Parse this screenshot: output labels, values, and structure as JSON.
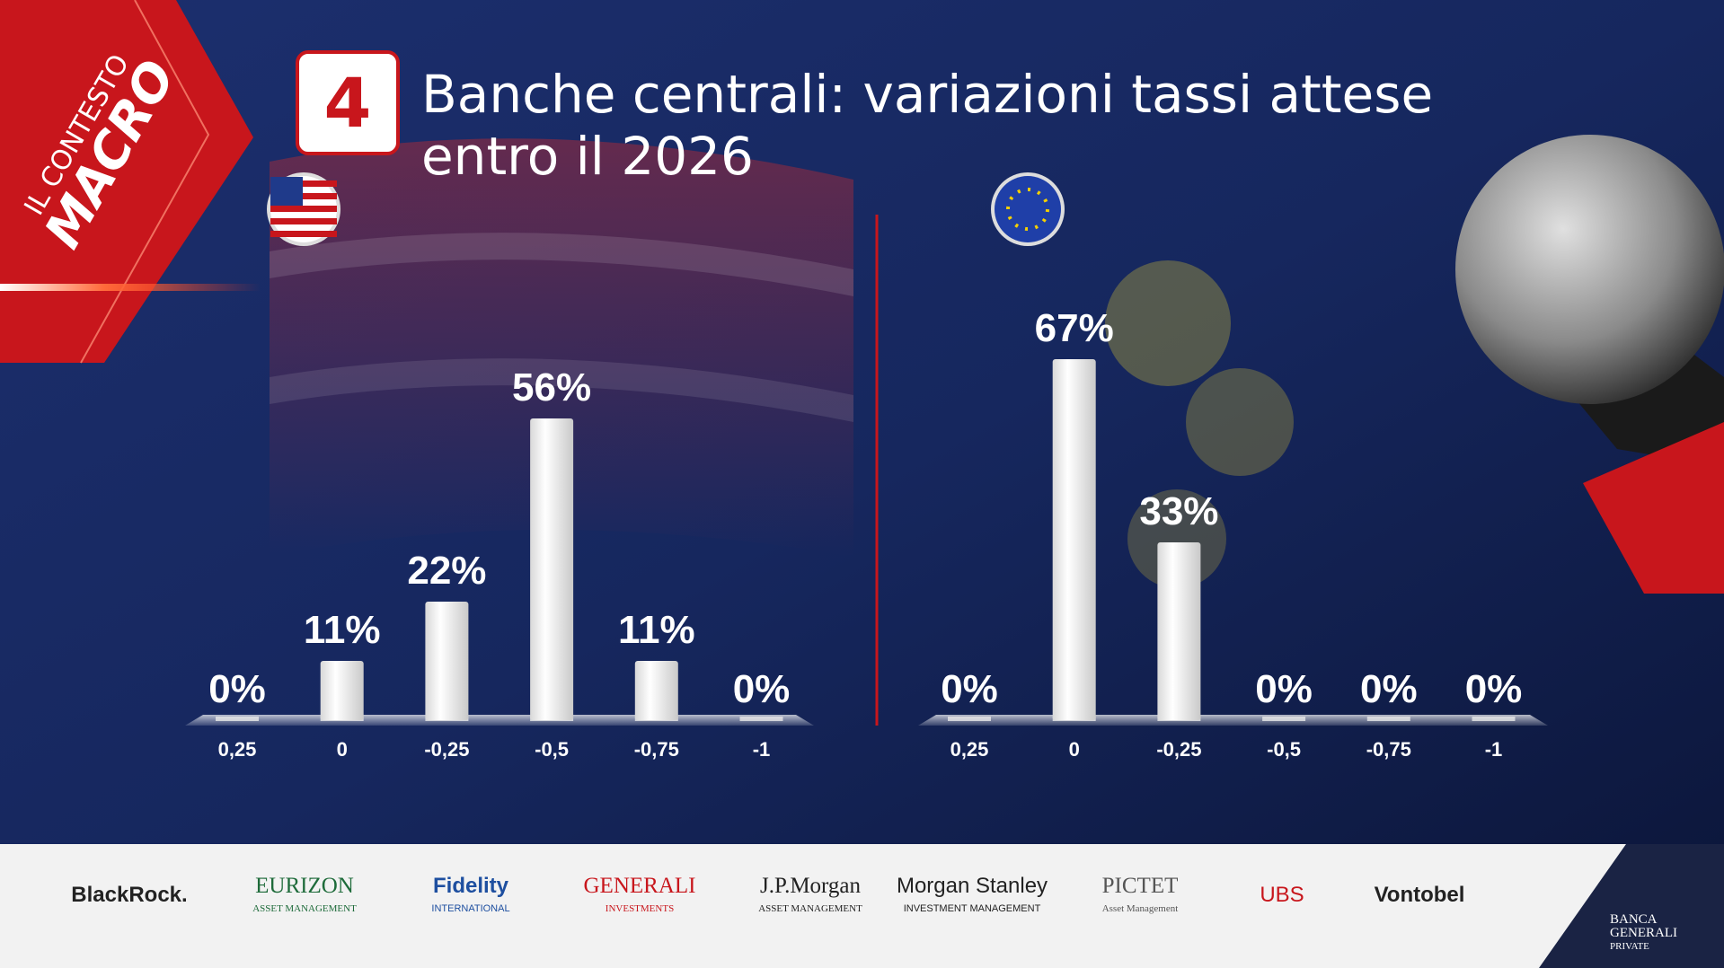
{
  "header": {
    "badge_top": "IL CONTESTO",
    "badge_bottom": "MACRO",
    "number": "4",
    "title": [
      "Banche centrali: variazioni tassi attese",
      "entro il 2026"
    ]
  },
  "chart_data": [
    {
      "type": "bar",
      "categories": [
        "0,25",
        "0",
        "-0,25",
        "-0,5",
        "-0,75",
        "-1"
      ],
      "values": [
        0,
        11,
        22,
        56,
        11,
        0
      ],
      "value_labels": [
        "0%",
        "11%",
        "22%",
        "56%",
        "11%",
        "0%"
      ],
      "color": "#ffffff"
    },
    {
      "type": "bar",
      "categories": [
        "0,25",
        "0",
        "-0,25",
        "-0,5",
        "-0,75",
        "-1"
      ],
      "values": [
        0,
        67,
        33,
        0,
        0,
        0
      ],
      "value_labels": [
        "0%",
        "67%",
        "33%",
        "0%",
        "0%",
        "0%"
      ],
      "color": "#ffffff"
    }
  ],
  "footer": {
    "logos": [
      {
        "name": "BlackRock."
      },
      {
        "name": "EURIZON",
        "sub": "ASSET MANAGEMENT"
      },
      {
        "name": "Fidelity",
        "sub": "INTERNATIONAL"
      },
      {
        "name": "GENERALI",
        "sub": "INVESTMENTS"
      },
      {
        "name": "J.P.Morgan",
        "sub": "ASSET MANAGEMENT"
      },
      {
        "name": "Morgan Stanley",
        "sub": "INVESTMENT MANAGEMENT"
      },
      {
        "name": "PICTET",
        "sub": "Asset Management"
      },
      {
        "name": "UBS"
      },
      {
        "name": "Vontobel"
      }
    ],
    "brand": [
      "BANCA",
      "GENERALI",
      "PRIVATE"
    ]
  }
}
